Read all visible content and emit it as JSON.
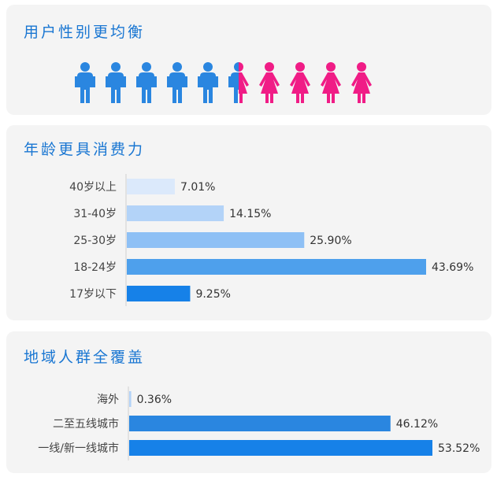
{
  "gender": {
    "title": "用户性别更均衡",
    "icon_count": 10,
    "male_share": 0.55,
    "male_color": "#2a86e0",
    "female_color": "#f01c86"
  },
  "chart_data": [
    {
      "type": "bar",
      "orientation": "horizontal",
      "title": "年龄更具消费力",
      "categories": [
        "40岁以上",
        "31-40岁",
        "25-30岁",
        "18-24岁",
        "17岁以下"
      ],
      "values": [
        7.01,
        14.15,
        25.9,
        43.69,
        9.25
      ],
      "value_labels": [
        "7.01%",
        "14.15%",
        "25.90%",
        "43.69%",
        "9.25%"
      ],
      "colors": [
        "#dbe9fb",
        "#b3d3f8",
        "#8ec0f5",
        "#4ea0ec",
        "#1681e8"
      ],
      "unit": "%",
      "grid": false,
      "legend": "none"
    },
    {
      "type": "bar",
      "orientation": "horizontal",
      "title": "地域人群全覆盖",
      "categories": [
        "海外",
        "二至五线城市",
        "一线/新一线城市"
      ],
      "values": [
        0.36,
        46.12,
        53.52
      ],
      "value_labels": [
        "0.36%",
        "46.12%",
        "53.52%"
      ],
      "colors": [
        "#b3d3f8",
        "#2a86e0",
        "#1681e8"
      ],
      "unit": "%",
      "grid": false,
      "legend": "none"
    }
  ]
}
